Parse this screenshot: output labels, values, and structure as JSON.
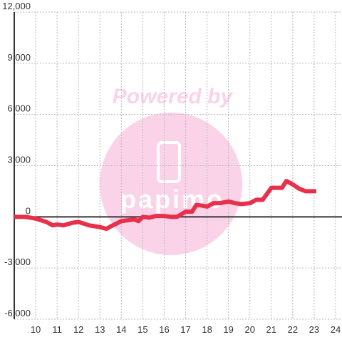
{
  "chart_data": {
    "type": "line",
    "watermark": [
      "Powered by",
      "papimo"
    ],
    "x": [
      9,
      9.5,
      10,
      10.5,
      10.8,
      11,
      11.3,
      11.7,
      12,
      12.5,
      13,
      13.3,
      13.6,
      14,
      14.3,
      14.6,
      14.8,
      15,
      15.3,
      15.6,
      16,
      16.3,
      16.6,
      17,
      17.3,
      17.5,
      17.8,
      18,
      18.3,
      18.6,
      19,
      19.3,
      19.6,
      20,
      20.3,
      20.6,
      21,
      21.5,
      21.7,
      22,
      22.3,
      22.6,
      23,
      23.1
    ],
    "series": [
      {
        "color": "#e8304a",
        "values": [
          0,
          0,
          -100,
          -300,
          -500,
          -450,
          -500,
          -350,
          -300,
          -500,
          -600,
          -700,
          -500,
          -250,
          -200,
          -150,
          -250,
          0,
          -50,
          50,
          50,
          0,
          0,
          300,
          300,
          700,
          650,
          600,
          800,
          800,
          900,
          800,
          750,
          800,
          1000,
          1000,
          1700,
          1700,
          2100,
          1900,
          1650,
          1500,
          1500,
          1500
        ]
      }
    ],
    "xlim": [
      9,
      24.3
    ],
    "ylim": [
      -6000,
      12000
    ],
    "xticks": [
      10,
      11,
      12,
      13,
      14,
      15,
      16,
      17,
      18,
      19,
      20,
      21,
      22,
      23,
      24
    ],
    "yticks": [
      {
        "value": -6000,
        "label": "-6,000"
      },
      {
        "value": -3000,
        "label": "-3,000"
      },
      0,
      {
        "value": 3000,
        "label": "3,000"
      },
      {
        "value": 6000,
        "label": "6,000"
      },
      {
        "value": 9000,
        "label": "9,000"
      },
      {
        "value": 12000,
        "label": "12,000"
      }
    ],
    "grid": true
  }
}
